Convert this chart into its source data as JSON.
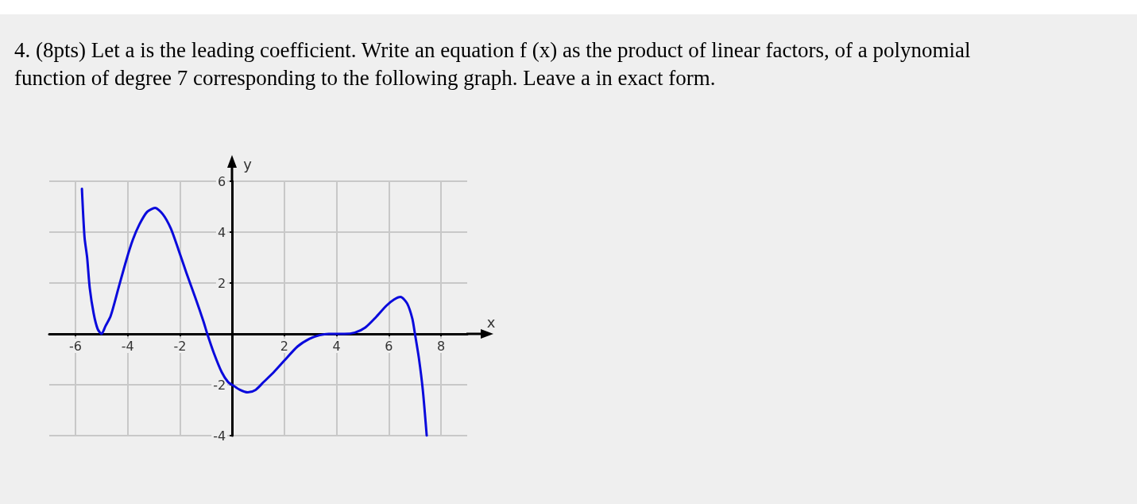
{
  "chart_data": {
    "type": "line",
    "title": "4. (8pts) Let a is the leading coefficient. Write an equation f (x) as the product of linear factors, of a polynomial function of degree 7 corresponding to the following graph. Leave a in exact form.",
    "xlabel": "x",
    "ylabel": "y",
    "x": [
      -5.75,
      -5.65,
      -5.55,
      -5.45,
      -5.3,
      -5.15,
      -5.0,
      -4.85,
      -4.65,
      -4.35,
      -4.05,
      -3.8,
      -3.55,
      -3.25,
      -2.95,
      -2.65,
      -2.35,
      -2.05,
      -1.75,
      -1.4,
      -1.1,
      -0.95,
      -0.7,
      -0.4,
      -0.15,
      0,
      0.3,
      0.6,
      0.9,
      1.2,
      1.6,
      2.0,
      2.5,
      2.95,
      3.35,
      3.7,
      4.0,
      4.3,
      4.7,
      5.1,
      5.5,
      5.9,
      6.2,
      6.45,
      6.7,
      6.9,
      7.0,
      7.15,
      7.3,
      7.45
    ],
    "series": [
      {
        "color": "#0a0adc",
        "values": [
          5.7,
          3.8,
          3.0,
          1.8,
          0.8,
          0.2,
          0,
          0.3,
          0.7,
          1.8,
          2.9,
          3.7,
          4.3,
          4.8,
          4.95,
          4.7,
          4.15,
          3.3,
          2.4,
          1.4,
          0.5,
          0,
          -0.75,
          -1.5,
          -1.9,
          -2.0,
          -2.2,
          -2.3,
          -2.2,
          -1.9,
          -1.5,
          -1.05,
          -0.5,
          -0.2,
          -0.05,
          0,
          0,
          0,
          0.05,
          0.25,
          0.65,
          1.1,
          1.35,
          1.45,
          1.2,
          0.6,
          0,
          -0.95,
          -2.2,
          -4.0
        ]
      }
    ],
    "xlim": [
      -7,
      9
    ],
    "ylim": [
      -4,
      6
    ],
    "xticks": [
      -6,
      -4,
      -2,
      2,
      4,
      6,
      8
    ],
    "yticks": [
      -4,
      -2,
      2,
      4,
      6
    ],
    "grid": true,
    "marker": "none"
  }
}
